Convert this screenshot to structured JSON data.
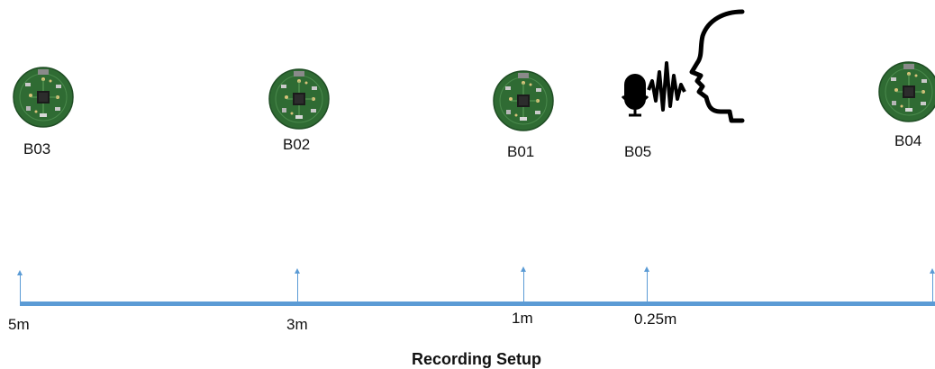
{
  "devices": [
    {
      "id": "b03",
      "label": "B03"
    },
    {
      "id": "b02",
      "label": "B02"
    },
    {
      "id": "b01",
      "label": "B01"
    },
    {
      "id": "b05",
      "label": "B05"
    },
    {
      "id": "b04",
      "label": "B04"
    }
  ],
  "distances": [
    "5m",
    "3m",
    "1m",
    "0.25m"
  ],
  "title": "Recording Setup",
  "colors": {
    "axis": "#5b9bd5",
    "board": "#2f6b33",
    "board_dark": "#1f4d24"
  }
}
